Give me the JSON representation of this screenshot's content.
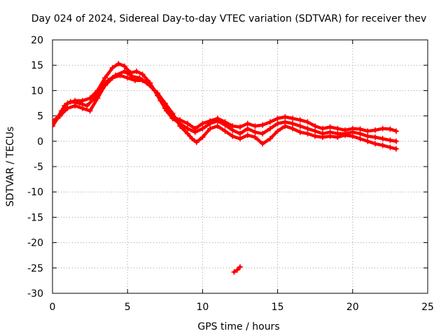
{
  "chart_data": {
    "type": "scatter",
    "title": "Day 024 of 2024, Sidereal Day-to-day VTEC variation (SDTVAR) for receiver thev",
    "xlabel": "GPS time / hours",
    "ylabel": "SDTVAR / TECUs",
    "xlim": [
      0,
      25
    ],
    "ylim": [
      -30,
      20
    ],
    "xticks": [
      0,
      5,
      10,
      15,
      20,
      25
    ],
    "yticks": [
      -30,
      -25,
      -20,
      -15,
      -10,
      -5,
      0,
      5,
      10,
      15,
      20
    ],
    "grid": true,
    "legend": "none",
    "series_color": "#ff0000",
    "series": [
      {
        "name": "track-upper",
        "points": [
          [
            0.0,
            3.5
          ],
          [
            0.3,
            4.5
          ],
          [
            0.6,
            6.0
          ],
          [
            1.0,
            7.5
          ],
          [
            1.5,
            8.0
          ],
          [
            2.0,
            8.0
          ],
          [
            2.5,
            8.5
          ],
          [
            3.0,
            10.0
          ],
          [
            3.5,
            12.5
          ],
          [
            4.0,
            14.5
          ],
          [
            4.4,
            15.3
          ],
          [
            4.8,
            14.8
          ],
          [
            5.2,
            13.5
          ],
          [
            5.6,
            13.8
          ],
          [
            6.0,
            13.2
          ],
          [
            6.5,
            11.5
          ],
          [
            7.0,
            9.0
          ],
          [
            7.5,
            6.5
          ],
          [
            8.0,
            4.8
          ],
          [
            8.5,
            4.2
          ],
          [
            9.0,
            3.5
          ],
          [
            9.5,
            2.5
          ],
          [
            10.0,
            3.5
          ],
          [
            10.5,
            4.0
          ],
          [
            11.0,
            4.5
          ],
          [
            11.5,
            3.8
          ],
          [
            12.0,
            3.0
          ],
          [
            12.5,
            2.8
          ],
          [
            13.0,
            3.5
          ],
          [
            13.5,
            3.0
          ],
          [
            14.0,
            3.2
          ],
          [
            14.5,
            3.8
          ],
          [
            15.0,
            4.5
          ],
          [
            15.5,
            4.8
          ],
          [
            16.0,
            4.5
          ],
          [
            16.5,
            4.2
          ],
          [
            17.0,
            3.8
          ],
          [
            17.5,
            3.0
          ],
          [
            18.0,
            2.5
          ],
          [
            18.5,
            2.8
          ],
          [
            19.0,
            2.5
          ],
          [
            19.5,
            2.2
          ],
          [
            20.0,
            2.5
          ],
          [
            20.5,
            2.4
          ],
          [
            21.0,
            2.0
          ],
          [
            21.5,
            2.2
          ],
          [
            22.0,
            2.5
          ],
          [
            22.5,
            2.4
          ],
          [
            22.9,
            2.0
          ]
        ]
      },
      {
        "name": "track-middle",
        "points": [
          [
            0.0,
            3.0
          ],
          [
            0.4,
            4.8
          ],
          [
            0.8,
            7.0
          ],
          [
            1.2,
            7.8
          ],
          [
            1.8,
            7.5
          ],
          [
            2.3,
            7.0
          ],
          [
            2.8,
            8.5
          ],
          [
            3.2,
            10.5
          ],
          [
            3.7,
            12.0
          ],
          [
            4.2,
            13.0
          ],
          [
            4.8,
            13.8
          ],
          [
            5.3,
            12.8
          ],
          [
            5.8,
            12.5
          ],
          [
            6.3,
            11.5
          ],
          [
            6.8,
            10.0
          ],
          [
            7.2,
            8.0
          ],
          [
            7.6,
            6.0
          ],
          [
            8.0,
            4.5
          ],
          [
            8.5,
            3.5
          ],
          [
            9.0,
            2.5
          ],
          [
            9.5,
            1.8
          ],
          [
            10.0,
            2.5
          ],
          [
            10.5,
            3.5
          ],
          [
            11.0,
            4.0
          ],
          [
            11.5,
            3.2
          ],
          [
            12.0,
            2.2
          ],
          [
            12.5,
            1.5
          ],
          [
            13.0,
            2.5
          ],
          [
            13.5,
            1.8
          ],
          [
            14.0,
            1.5
          ],
          [
            14.5,
            2.5
          ],
          [
            15.0,
            3.5
          ],
          [
            15.5,
            3.8
          ],
          [
            16.0,
            3.5
          ],
          [
            16.5,
            3.0
          ],
          [
            17.0,
            2.5
          ],
          [
            17.5,
            2.0
          ],
          [
            18.0,
            1.5
          ],
          [
            18.5,
            1.8
          ],
          [
            19.0,
            1.5
          ],
          [
            19.5,
            1.5
          ],
          [
            20.0,
            1.8
          ],
          [
            20.5,
            1.5
          ],
          [
            21.0,
            1.0
          ],
          [
            21.5,
            0.8
          ],
          [
            22.0,
            0.5
          ],
          [
            22.5,
            0.2
          ],
          [
            22.9,
            0.0
          ]
        ]
      },
      {
        "name": "track-lower",
        "points": [
          [
            0.0,
            4.0
          ],
          [
            0.5,
            5.0
          ],
          [
            1.0,
            6.5
          ],
          [
            1.5,
            7.0
          ],
          [
            2.0,
            6.5
          ],
          [
            2.5,
            6.0
          ],
          [
            3.0,
            8.5
          ],
          [
            3.5,
            11.0
          ],
          [
            4.0,
            12.5
          ],
          [
            4.5,
            13.0
          ],
          [
            5.0,
            12.5
          ],
          [
            5.5,
            12.0
          ],
          [
            6.0,
            12.0
          ],
          [
            6.5,
            11.0
          ],
          [
            7.0,
            9.5
          ],
          [
            7.5,
            7.5
          ],
          [
            8.0,
            5.5
          ],
          [
            8.5,
            3.0
          ],
          [
            9.0,
            1.5
          ],
          [
            9.3,
            0.5
          ],
          [
            9.6,
            -0.2
          ],
          [
            10.0,
            0.8
          ],
          [
            10.5,
            2.5
          ],
          [
            11.0,
            3.0
          ],
          [
            11.5,
            2.0
          ],
          [
            12.0,
            1.0
          ],
          [
            12.5,
            0.5
          ],
          [
            13.0,
            1.2
          ],
          [
            13.5,
            0.8
          ],
          [
            14.0,
            -0.5
          ],
          [
            14.5,
            0.5
          ],
          [
            15.0,
            2.0
          ],
          [
            15.5,
            3.0
          ],
          [
            16.0,
            2.5
          ],
          [
            16.5,
            1.8
          ],
          [
            17.0,
            1.5
          ],
          [
            17.5,
            1.0
          ],
          [
            18.0,
            0.8
          ],
          [
            18.5,
            1.0
          ],
          [
            19.0,
            0.8
          ],
          [
            19.5,
            1.2
          ],
          [
            20.0,
            1.0
          ],
          [
            20.5,
            0.5
          ],
          [
            21.0,
            0.0
          ],
          [
            21.5,
            -0.5
          ],
          [
            22.0,
            -0.8
          ],
          [
            22.5,
            -1.2
          ],
          [
            22.9,
            -1.5
          ]
        ]
      },
      {
        "name": "outlier-segment",
        "points": [
          [
            12.1,
            -25.8
          ],
          [
            12.3,
            -25.4
          ],
          [
            12.5,
            -24.8
          ]
        ]
      }
    ]
  }
}
